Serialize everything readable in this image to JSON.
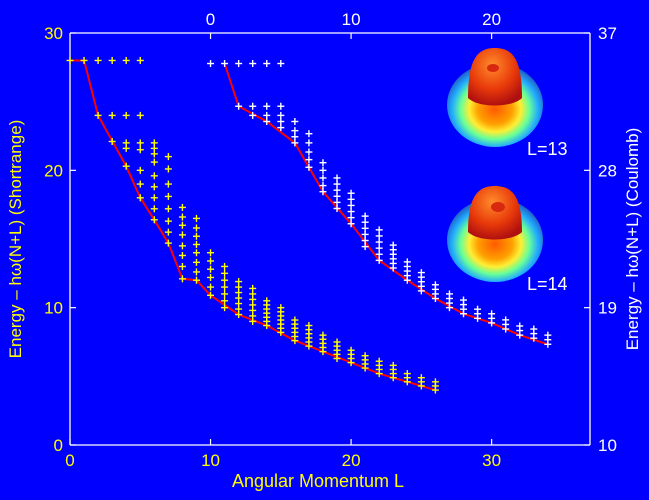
{
  "chart_data": {
    "type": "scatter",
    "xlabel": "Angular Momentum L",
    "ylabel_left": "Energy – hω(N+L) (Shortrange)",
    "ylabel_right": "Energy – hω(N+L) (Coulomb)",
    "bottom_axis": {
      "range": [
        0,
        37
      ],
      "ticks": [
        "0",
        "10",
        "20",
        "30"
      ]
    },
    "top_axis": {
      "range": [
        -10,
        27
      ],
      "ticks": [
        "0",
        "10",
        "20"
      ]
    },
    "left_axis": {
      "range": [
        0,
        30
      ],
      "ticks": [
        "0",
        "10",
        "20",
        "30"
      ]
    },
    "right_axis": {
      "range": [
        10,
        37
      ],
      "ticks": [
        "10",
        "19",
        "28",
        "37"
      ]
    },
    "colors": {
      "background": "#0000ff",
      "shortrange": "#ffff00",
      "coulomb": "#ffffff",
      "yrast": "#ff0000"
    },
    "insets": [
      {
        "label": "L=13"
      },
      {
        "label": "L=14"
      }
    ],
    "series": [
      {
        "axis": "bottom-left",
        "color": "#ffff00",
        "columns": [
          {
            "x": 0,
            "e": [
              28.0
            ]
          },
          {
            "x": 1,
            "e": [
              28.0
            ]
          },
          {
            "x": 2,
            "e": [
              24.0,
              28.0
            ]
          },
          {
            "x": 3,
            "e": [
              22.1,
              24.0,
              28.0
            ]
          },
          {
            "x": 4,
            "e": [
              20.3,
              21.6,
              22.0,
              24.0,
              28.0
            ]
          },
          {
            "x": 5,
            "e": [
              18.0,
              19.0,
              20.0,
              21.5,
              22.0,
              24.0,
              28.0
            ]
          },
          {
            "x": 6,
            "e": [
              16.4,
              17.2,
              18.0,
              18.8,
              19.6,
              20.6,
              21.2,
              21.6,
              22.0
            ]
          },
          {
            "x": 7,
            "e": [
              14.7,
              15.5,
              16.3,
              17.2,
              18.1,
              19.0,
              20.1,
              21.0
            ]
          },
          {
            "x": 8,
            "e": [
              12.1,
              13.0,
              13.8,
              14.5,
              15.3,
              16.0,
              16.6,
              17.3
            ]
          },
          {
            "x": 9,
            "e": [
              12.0,
              12.6,
              13.3,
              14.0,
              14.6,
              15.2,
              15.8,
              16.5
            ]
          },
          {
            "x": 10,
            "e": [
              10.9,
              11.5,
              12.2,
              12.8,
              13.4,
              14.0
            ]
          },
          {
            "x": 11,
            "e": [
              10.0,
              10.5,
              11.0,
              11.5,
              12.0,
              12.5,
              13.0
            ]
          },
          {
            "x": 12,
            "e": [
              9.5,
              9.9,
              10.3,
              10.7,
              11.1,
              11.5,
              11.9
            ]
          },
          {
            "x": 13,
            "e": [
              9.0,
              9.4,
              9.8,
              10.2,
              10.6,
              11.0,
              11.4
            ]
          },
          {
            "x": 14,
            "e": [
              8.7,
              9.0,
              9.3,
              9.6,
              9.9,
              10.2,
              10.5
            ]
          },
          {
            "x": 15,
            "e": [
              8.2,
              8.5,
              8.8,
              9.1,
              9.4,
              9.7,
              10.0
            ]
          },
          {
            "x": 16,
            "e": [
              7.6,
              7.9,
              8.2,
              8.5,
              8.8,
              9.1
            ]
          },
          {
            "x": 17,
            "e": [
              7.2,
              7.5,
              7.8,
              8.1,
              8.4,
              8.7
            ]
          },
          {
            "x": 18,
            "e": [
              6.8,
              7.1,
              7.4,
              7.7,
              8.0
            ]
          },
          {
            "x": 19,
            "e": [
              6.3,
              6.6,
              6.9,
              7.2,
              7.5
            ]
          },
          {
            "x": 20,
            "e": [
              6.0,
              6.3,
              6.6,
              6.9
            ]
          },
          {
            "x": 21,
            "e": [
              5.6,
              5.9,
              6.2,
              6.5
            ]
          },
          {
            "x": 22,
            "e": [
              5.2,
              5.5,
              5.8,
              6.1
            ]
          },
          {
            "x": 23,
            "e": [
              4.9,
              5.2,
              5.5,
              5.8
            ]
          },
          {
            "x": 24,
            "e": [
              4.6,
              4.9,
              5.2
            ]
          },
          {
            "x": 25,
            "e": [
              4.3,
              4.6,
              4.9
            ]
          },
          {
            "x": 26,
            "e": [
              4.0,
              4.3,
              4.6
            ]
          }
        ],
        "yrast_line": [
          [
            0,
            28.0
          ],
          [
            1,
            28.0
          ],
          [
            2,
            24.0
          ],
          [
            4,
            20.3
          ],
          [
            5,
            18.0
          ],
          [
            6,
            16.4
          ],
          [
            7,
            14.7
          ],
          [
            8,
            12.1
          ],
          [
            9,
            12.0
          ],
          [
            10,
            10.9
          ],
          [
            12,
            9.5
          ],
          [
            14,
            8.7
          ],
          [
            16,
            7.6
          ],
          [
            18,
            6.8
          ],
          [
            20,
            6.0
          ],
          [
            22,
            5.2
          ],
          [
            24,
            4.6
          ],
          [
            26,
            4.0
          ]
        ]
      },
      {
        "axis": "top-right",
        "color": "#ffffff",
        "columns": [
          {
            "x": 0,
            "e": [
              35.0
            ]
          },
          {
            "x": 1,
            "e": [
              35.0
            ]
          },
          {
            "x": 2,
            "e": [
              32.2,
              35.0
            ]
          },
          {
            "x": 3,
            "e": [
              31.6,
              32.2,
              35.0
            ]
          },
          {
            "x": 4,
            "e": [
              31.2,
              31.6,
              32.2,
              35.0
            ]
          },
          {
            "x": 5,
            "e": [
              30.8,
              31.2,
              31.6,
              32.2,
              35.0
            ]
          },
          {
            "x": 6,
            "e": [
              29.8,
              30.2,
              30.6,
              31.2
            ]
          },
          {
            "x": 7,
            "e": [
              28.2,
              28.7,
              29.2,
              29.8,
              30.4
            ]
          },
          {
            "x": 8,
            "e": [
              26.6,
              27.0,
              27.5,
              28.0,
              28.5
            ]
          },
          {
            "x": 9,
            "e": [
              25.5,
              25.9,
              26.3,
              26.7,
              27.1,
              27.5
            ]
          },
          {
            "x": 10,
            "e": [
              24.5,
              24.9,
              25.3,
              25.7,
              26.1,
              26.5
            ]
          },
          {
            "x": 11,
            "e": [
              23.0,
              23.4,
              23.8,
              24.2,
              24.6,
              25.0
            ]
          },
          {
            "x": 12,
            "e": [
              22.1,
              22.5,
              22.9,
              23.3,
              23.7,
              24.1
            ]
          },
          {
            "x": 13,
            "e": [
              21.6,
              21.9,
              22.2,
              22.5,
              22.8,
              23.1
            ]
          },
          {
            "x": 14,
            "e": [
              20.8,
              21.1,
              21.4,
              21.7,
              22.0
            ]
          },
          {
            "x": 15,
            "e": [
              20.1,
              20.4,
              20.7,
              21.0,
              21.3
            ]
          },
          {
            "x": 16,
            "e": [
              19.6,
              19.9,
              20.2,
              20.5
            ]
          },
          {
            "x": 17,
            "e": [
              19.0,
              19.3,
              19.6,
              19.9
            ]
          },
          {
            "x": 18,
            "e": [
              18.6,
              18.9,
              19.2,
              19.5
            ]
          },
          {
            "x": 19,
            "e": [
              18.3,
              18.6,
              18.9
            ]
          },
          {
            "x": 20,
            "e": [
              18.0,
              18.3,
              18.6
            ]
          },
          {
            "x": 21,
            "e": [
              17.6,
              17.9,
              18.2
            ]
          },
          {
            "x": 22,
            "e": [
              17.2,
              17.5,
              17.8
            ]
          },
          {
            "x": 23,
            "e": [
              17.0,
              17.3,
              17.6
            ]
          },
          {
            "x": 24,
            "e": [
              16.6,
              16.9,
              17.2
            ]
          }
        ],
        "yrast_line": [
          [
            1,
            35.0
          ],
          [
            2,
            32.2
          ],
          [
            4,
            31.2
          ],
          [
            6,
            29.8
          ],
          [
            8,
            26.6
          ],
          [
            10,
            24.5
          ],
          [
            12,
            22.1
          ],
          [
            14,
            20.8
          ],
          [
            16,
            19.6
          ],
          [
            18,
            18.6
          ],
          [
            20,
            18.0
          ],
          [
            22,
            17.2
          ],
          [
            24,
            16.6
          ]
        ]
      }
    ]
  }
}
